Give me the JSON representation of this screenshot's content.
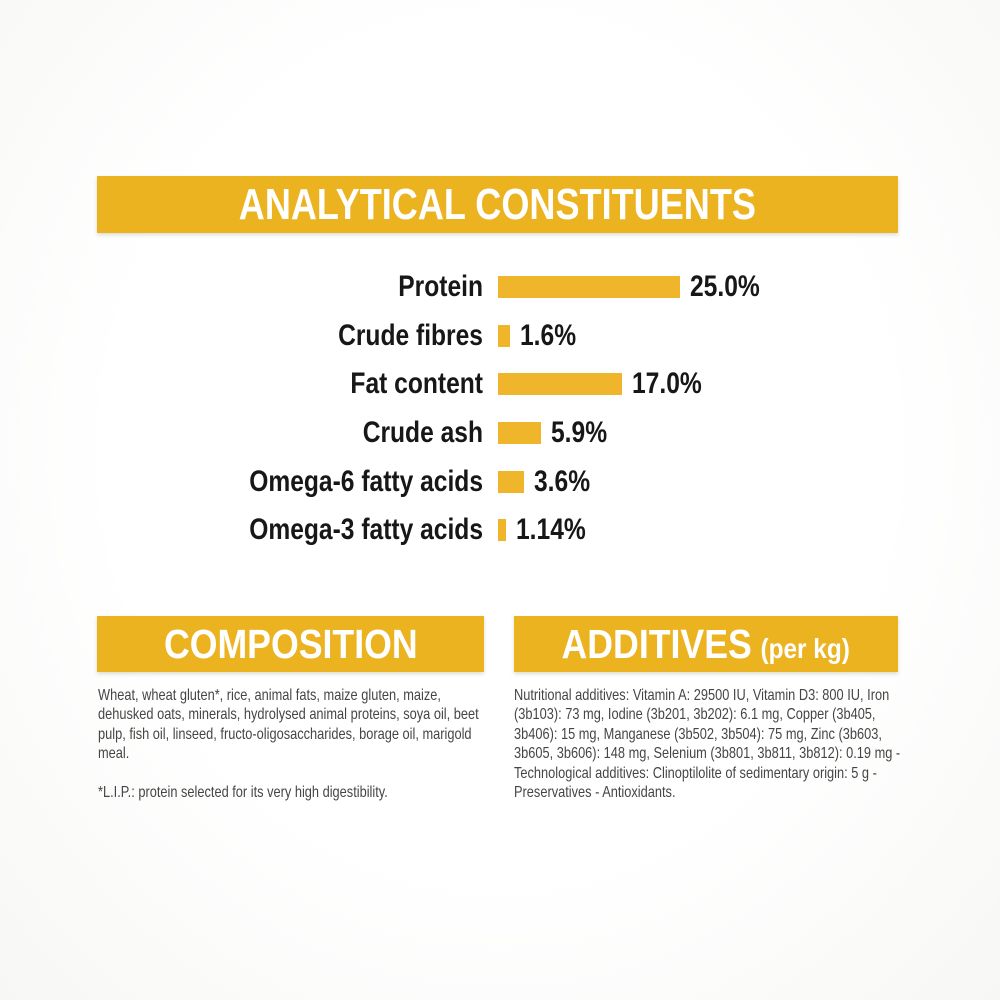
{
  "colors": {
    "gold_banner": "#ecb321",
    "gold_bar": "#f0b62b",
    "banner_text": "#ffffff",
    "label_text": "#171717",
    "body_text": "#454545"
  },
  "analytical": {
    "title": "ANALYTICAL CONSTITUENTS",
    "rows": [
      {
        "label": "Protein",
        "value": "25.0%",
        "pct": 25.0
      },
      {
        "label": "Crude fibres",
        "value": "1.6%",
        "pct": 1.6
      },
      {
        "label": "Fat content",
        "value": "17.0%",
        "pct": 17.0
      },
      {
        "label": "Crude ash",
        "value": "5.9%",
        "pct": 5.9
      },
      {
        "label": "Omega-6 fatty acids",
        "value": "3.6%",
        "pct": 3.6
      },
      {
        "label": "Omega-3 fatty acids",
        "value": "1.14%",
        "pct": 1.14
      }
    ]
  },
  "composition": {
    "title": "COMPOSITION",
    "body": "Wheat, wheat gluten*, rice, animal fats, maize gluten, maize, dehusked oats, minerals, hydrolysed animal proteins, soya oil, beet pulp, fish oil, linseed, fructo-oligosaccharides, borage oil, marigold meal.",
    "footnote": "*L.I.P.: protein selected for its very high digestibility."
  },
  "additives": {
    "title": "ADDITIVES",
    "title_suffix": "(per kg)",
    "body": "Nutritional additives: Vitamin A: 29500 IU, Vitamin D3: 800 IU, Iron (3b103): 73 mg, Iodine (3b201, 3b202): 6.1 mg, Copper (3b405, 3b406): 15 mg, Manganese (3b502, 3b504): 75 mg, Zinc (3b603, 3b605, 3b606): 148 mg, Selenium (3b801, 3b811, 3b812): 0.19 mg - Technological additives: Clinoptilolite of sedimentary origin: 5 g - Preservatives - Antioxidants."
  },
  "chart_data": {
    "type": "bar",
    "orientation": "horizontal",
    "title": "ANALYTICAL CONSTITUENTS",
    "categories": [
      "Protein",
      "Crude fibres",
      "Fat content",
      "Crude ash",
      "Omega-6 fatty acids",
      "Omega-3 fatty acids"
    ],
    "values": [
      25.0,
      1.6,
      17.0,
      5.9,
      3.6,
      1.14
    ],
    "value_labels": [
      "25.0%",
      "1.6%",
      "17.0%",
      "5.9%",
      "3.6%",
      "1.14%"
    ],
    "unit": "%",
    "xlim": [
      0,
      25
    ],
    "grid": false,
    "legend": false,
    "bar_color": "#f0b62b",
    "data_label_position": "end-of-bar"
  }
}
